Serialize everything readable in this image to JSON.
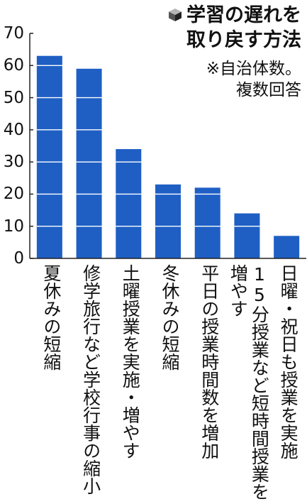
{
  "title_lines": [
    "学習の遅れを",
    "取り戻す方法"
  ],
  "note_lines": [
    "※自治体数。",
    "複数回答"
  ],
  "colors": {
    "bar": "#1f5fc4",
    "axis": "#222222",
    "text": "#111111"
  },
  "chart_data": {
    "type": "bar",
    "title": "学習の遅れを取り戻す方法",
    "subtitle": "※自治体数。複数回答",
    "categories": [
      "夏休みの短縮",
      "修学旅行など学校行事の縮小",
      "土曜授業を実施・増やす",
      "冬休みの短縮",
      "平日の授業時間数を増加",
      "15分授業など短時間授業を増やす",
      "日曜・祝日も授業を実施"
    ],
    "category_label_lines": [
      [
        "夏休みの短縮"
      ],
      [
        "修学旅行など学校行事の縮小"
      ],
      [
        "土曜授業を実施・増やす"
      ],
      [
        "冬休みの短縮"
      ],
      [
        "平日の授業時間数を増加"
      ],
      [
        "15分授業など短時間授業を",
        "増やす"
      ],
      [
        "日曜・祝日も授業を実施"
      ]
    ],
    "values": [
      63,
      59,
      34,
      23,
      22,
      14,
      7
    ],
    "yticks": [
      "0",
      "10",
      "20",
      "30",
      "40",
      "50",
      "60",
      "70"
    ],
    "ylim": [
      0,
      70
    ],
    "gridlines_on_bars": true,
    "legend": "none"
  }
}
